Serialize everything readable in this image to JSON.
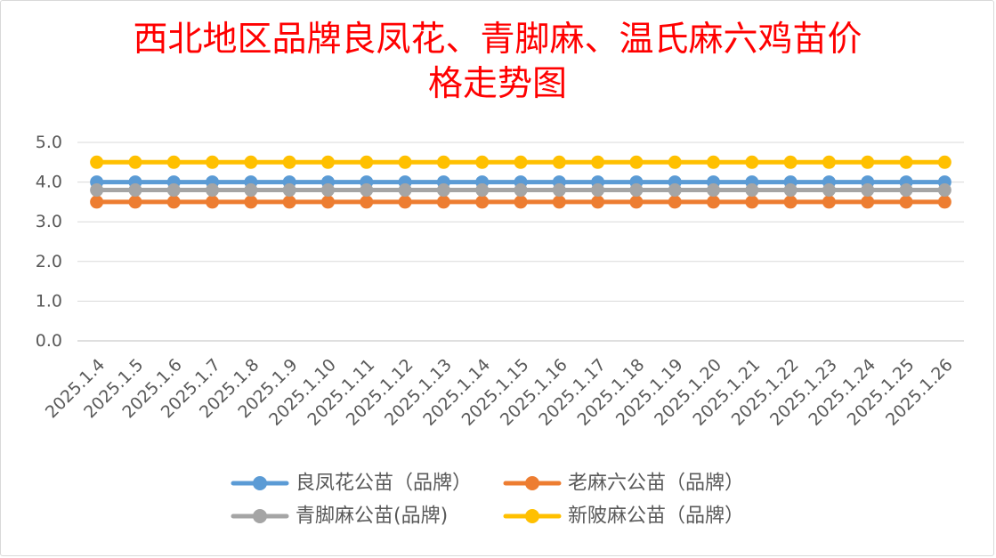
{
  "chart_data": {
    "type": "line",
    "title": "西北地区品牌良凤花、青脚麻、温氏麻六鸡苗价格走势图",
    "title_color": "#FF0000",
    "xlabel": "",
    "ylabel": "",
    "ylim": [
      0,
      5
    ],
    "yticks": [
      "0.0",
      "1.0",
      "2.0",
      "3.0",
      "4.0",
      "5.0"
    ],
    "grid": true,
    "legend": "bottom",
    "categories": [
      "2025.1.4",
      "2025.1.5",
      "2025.1.6",
      "2025.1.7",
      "2025.1.8",
      "2025.1.9",
      "2025.1.10",
      "2025.1.11",
      "2025.1.12",
      "2025.1.13",
      "2025.1.14",
      "2025.1.15",
      "2025.1.16",
      "2025.1.17",
      "2025.1.18",
      "2025.1.19",
      "2025.1.20",
      "2025.1.21",
      "2025.1.22",
      "2025.1.23",
      "2025.1.24",
      "2025.1.25",
      "2025.1.26"
    ],
    "series": [
      {
        "name": "良凤花公苗（品牌）",
        "color": "#5B9BD5",
        "values": [
          4.0,
          4.0,
          4.0,
          4.0,
          4.0,
          4.0,
          4.0,
          4.0,
          4.0,
          4.0,
          4.0,
          4.0,
          4.0,
          4.0,
          4.0,
          4.0,
          4.0,
          4.0,
          4.0,
          4.0,
          4.0,
          4.0,
          4.0
        ]
      },
      {
        "name": "老麻六公苗（品牌）",
        "color": "#ED7D31",
        "values": [
          3.5,
          3.5,
          3.5,
          3.5,
          3.5,
          3.5,
          3.5,
          3.5,
          3.5,
          3.5,
          3.5,
          3.5,
          3.5,
          3.5,
          3.5,
          3.5,
          3.5,
          3.5,
          3.5,
          3.5,
          3.5,
          3.5,
          3.5
        ]
      },
      {
        "name": "青脚麻公苗(品牌)",
        "color": "#A5A5A5",
        "values": [
          3.8,
          3.8,
          3.8,
          3.8,
          3.8,
          3.8,
          3.8,
          3.8,
          3.8,
          3.8,
          3.8,
          3.8,
          3.8,
          3.8,
          3.8,
          3.8,
          3.8,
          3.8,
          3.8,
          3.8,
          3.8,
          3.8,
          3.8
        ]
      },
      {
        "name": "新陂麻公苗（品牌）",
        "color": "#FFC000",
        "values": [
          4.5,
          4.5,
          4.5,
          4.5,
          4.5,
          4.5,
          4.5,
          4.5,
          4.5,
          4.5,
          4.5,
          4.5,
          4.5,
          4.5,
          4.5,
          4.5,
          4.5,
          4.5,
          4.5,
          4.5,
          4.5,
          4.5,
          4.5
        ]
      }
    ]
  }
}
